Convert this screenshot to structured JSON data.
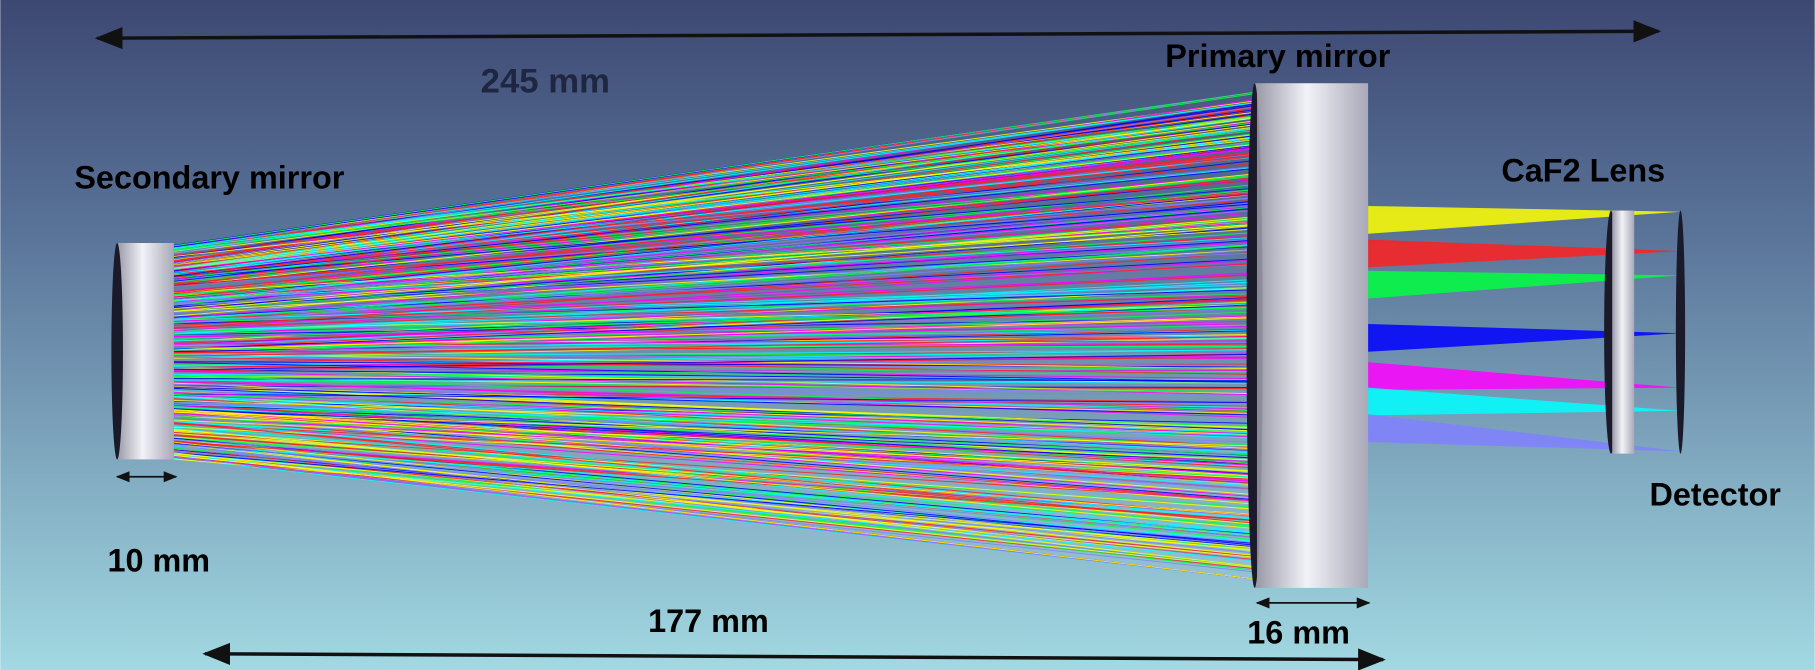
{
  "components": {
    "primary": "Primary mirror",
    "secondary": "Secondary mirror",
    "lens": "CaF2 Lens",
    "detector": "Detector"
  },
  "dimensions": {
    "total": "245 mm",
    "secondary_thickness": "10 mm",
    "separation": "177 mm",
    "primary_thickness": "16 mm"
  }
}
